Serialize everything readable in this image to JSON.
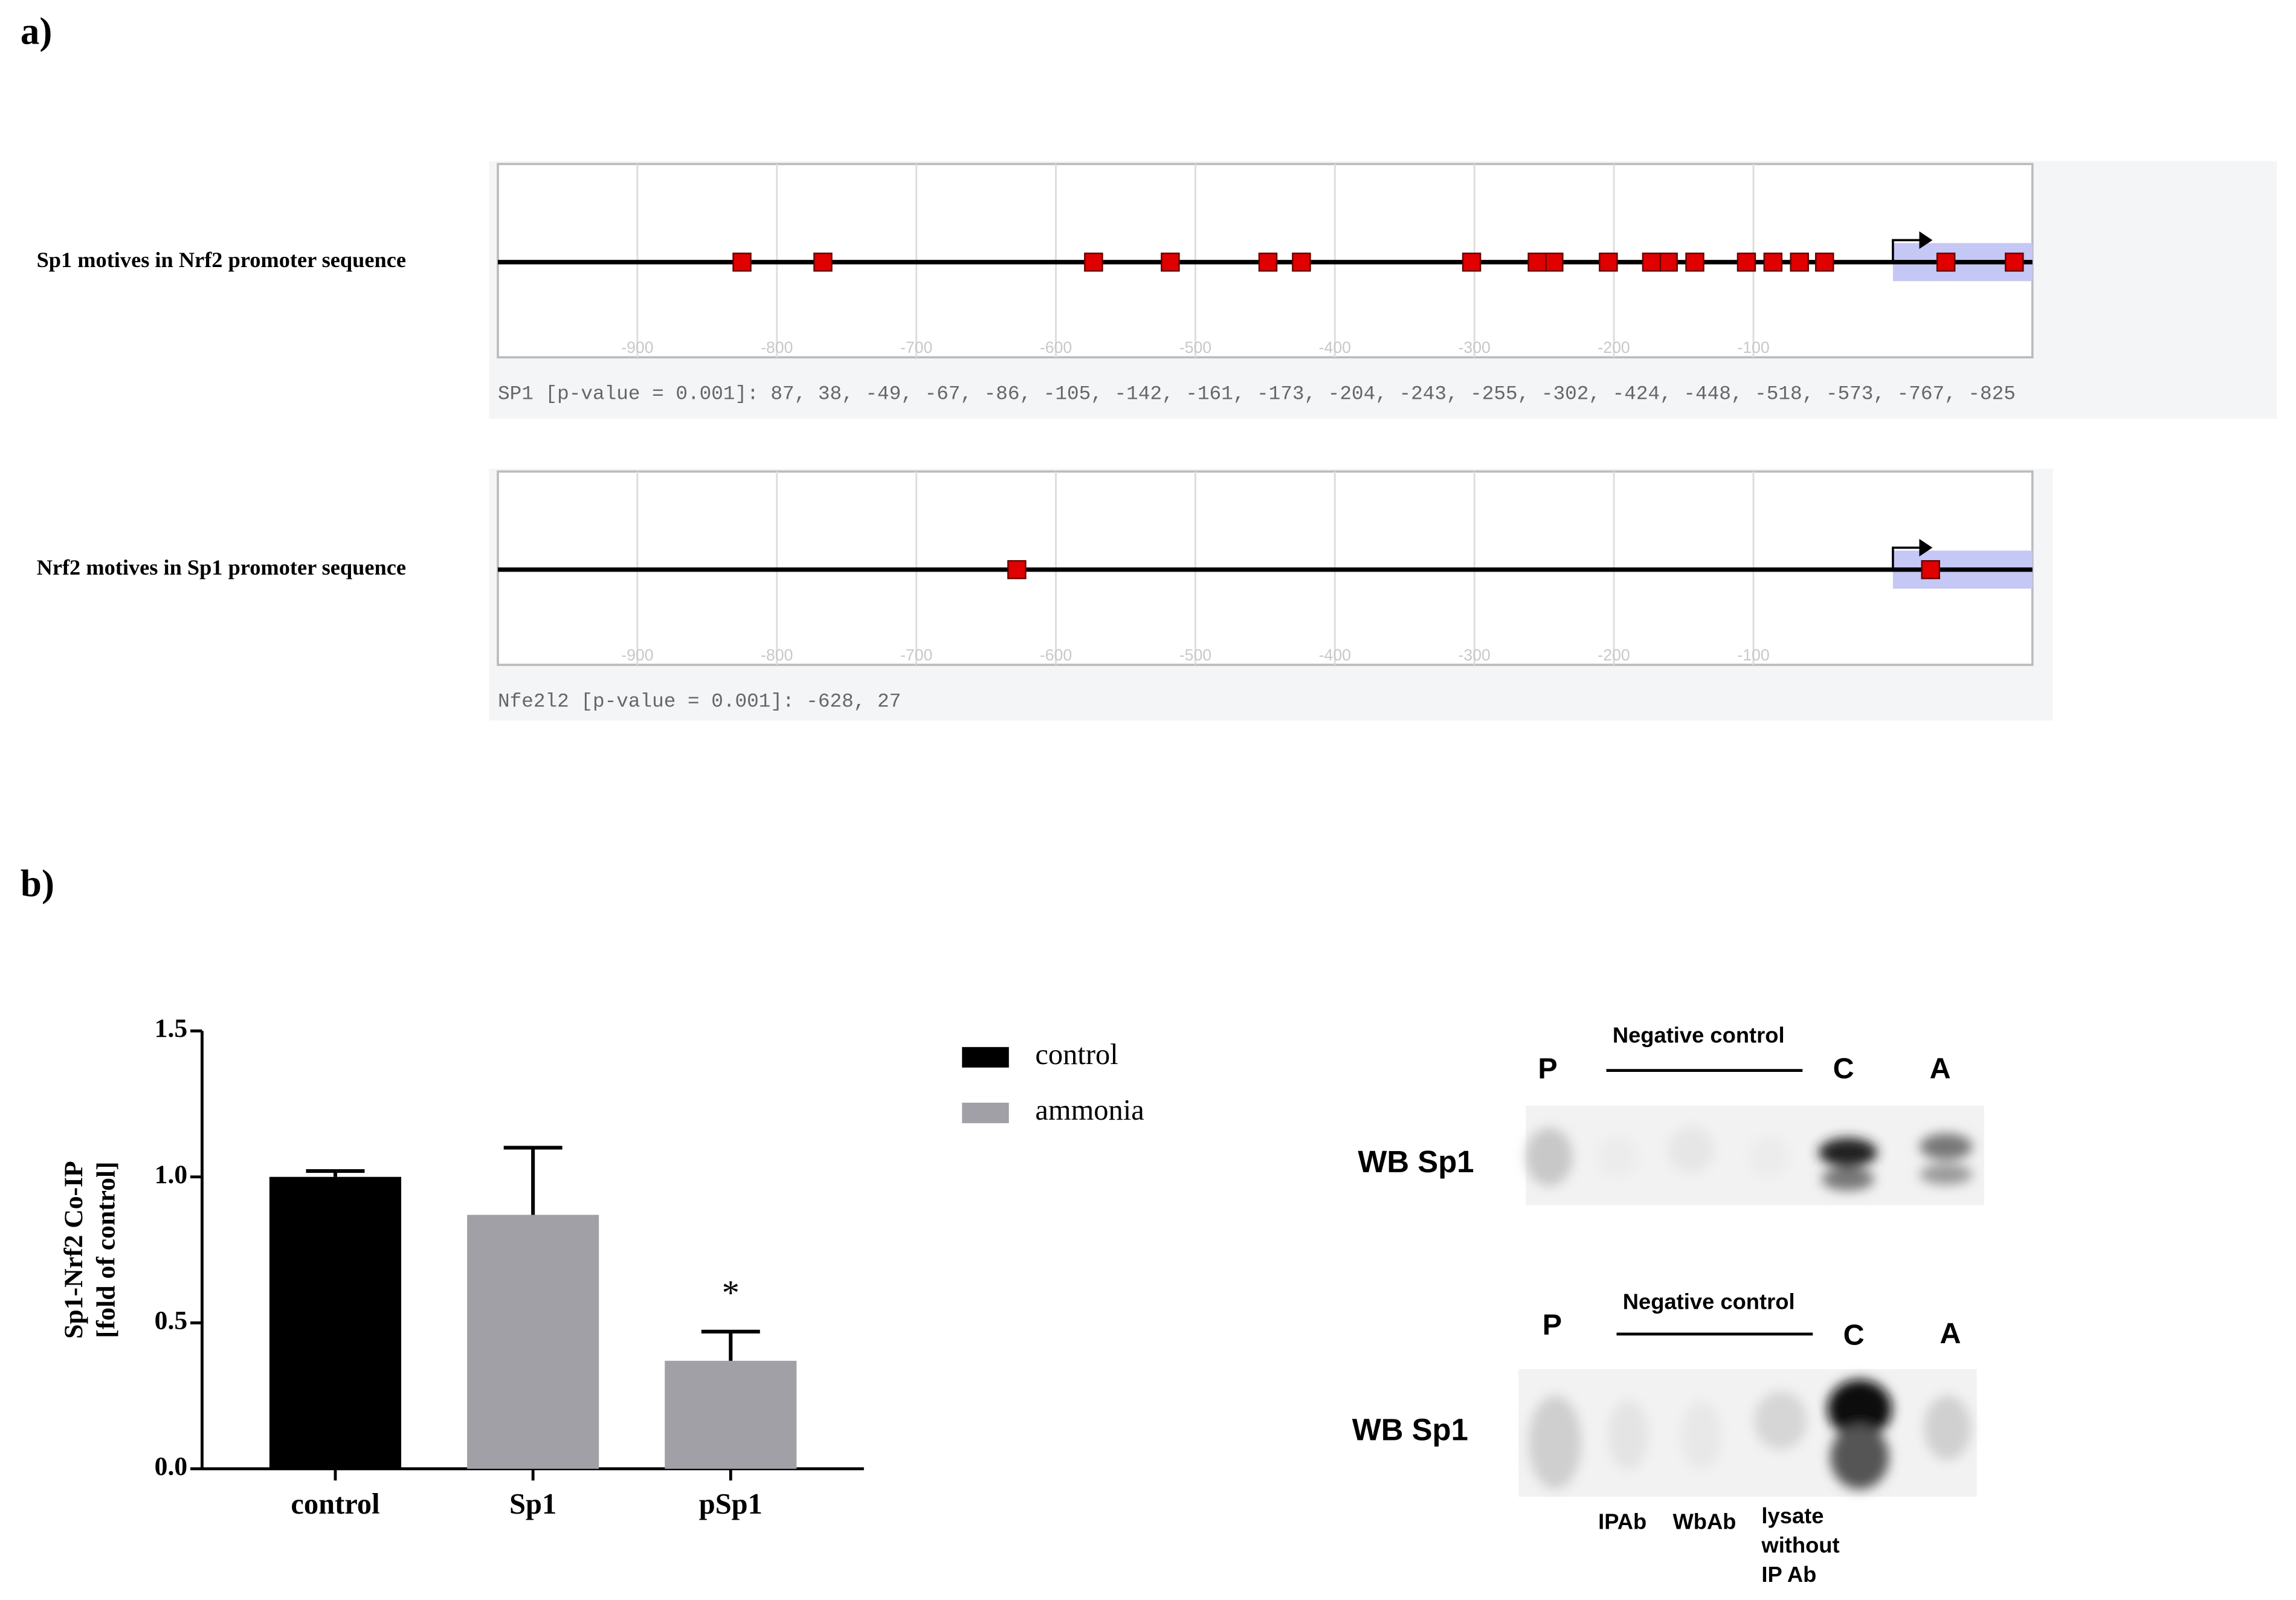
{
  "panel_labels": [
    "a)",
    "b)"
  ],
  "chart_data": [
    {
      "type": "motif-map",
      "title": "Sp1 motives in Nrf2 promoter sequence",
      "caption": "SP1 [p-value = 0.001]: 87, 38, -49, -67, -86, -105, -142, -161, -173, -204, -243, -255, -302, -424, -448, -518, -573, -767, -825",
      "x": [
        87,
        38,
        -49,
        -67,
        -86,
        -105,
        -142,
        -161,
        -173,
        -204,
        -243,
        -255,
        -302,
        -424,
        -448,
        -518,
        -573,
        -767,
        -825
      ],
      "xlim": [
        -1000,
        100
      ],
      "xticks": [
        -900,
        -800,
        -700,
        -600,
        -500,
        -400,
        -300,
        -200,
        -100
      ],
      "color": "#e00000",
      "grid": true
    },
    {
      "type": "motif-map",
      "title": "Nrf2 motives in Sp1 promoter sequence",
      "caption": "Nfe2l2 [p-value = 0.001]: -628, 27",
      "x": [
        -628,
        27
      ],
      "xlim": [
        -1000,
        100
      ],
      "xticks": [
        -900,
        -800,
        -700,
        -600,
        -500,
        -400,
        -300,
        -200,
        -100
      ],
      "color": "#e00000",
      "grid": true
    },
    {
      "type": "bar",
      "categories": [
        "control",
        "Sp1",
        "pSp1"
      ],
      "ylabel": [
        "Sp1-Nrf2 Co-IP",
        "[fold of control]"
      ],
      "series": [
        {
          "name": "control",
          "color": "#000000",
          "values": [
            1.0,
            null,
            null
          ],
          "errors": [
            0.02,
            null,
            null
          ]
        },
        {
          "name": "ammonia",
          "color": "#a0a0a6",
          "values": [
            null,
            0.87,
            0.37
          ],
          "errors": [
            null,
            0.23,
            0.1
          ]
        }
      ],
      "ylim": [
        0,
        1.5
      ],
      "yticks": [
        {
          "value": 0,
          "label": "0.0"
        },
        {
          "value": 0.5,
          "label": "0.5"
        },
        {
          "value": 1,
          "label": "1.0"
        },
        {
          "value": 1.5,
          "label": "1.5"
        }
      ],
      "annotations": [
        {
          "text": "*",
          "category": "pSp1"
        }
      ]
    }
  ],
  "blot": {
    "panels": [
      {
        "label": "WB Sp1",
        "group": "Negative control",
        "lanes": [
          "P",
          "C",
          "A"
        ]
      },
      {
        "label": "WB Sp1",
        "group": "Negative control",
        "lanes": [
          "P",
          "C",
          "A"
        ]
      }
    ],
    "lane_labels": [
      [
        "IPAb"
      ],
      [
        "WbAb"
      ],
      [
        "lysate",
        "without",
        "IP Ab"
      ]
    ]
  }
}
